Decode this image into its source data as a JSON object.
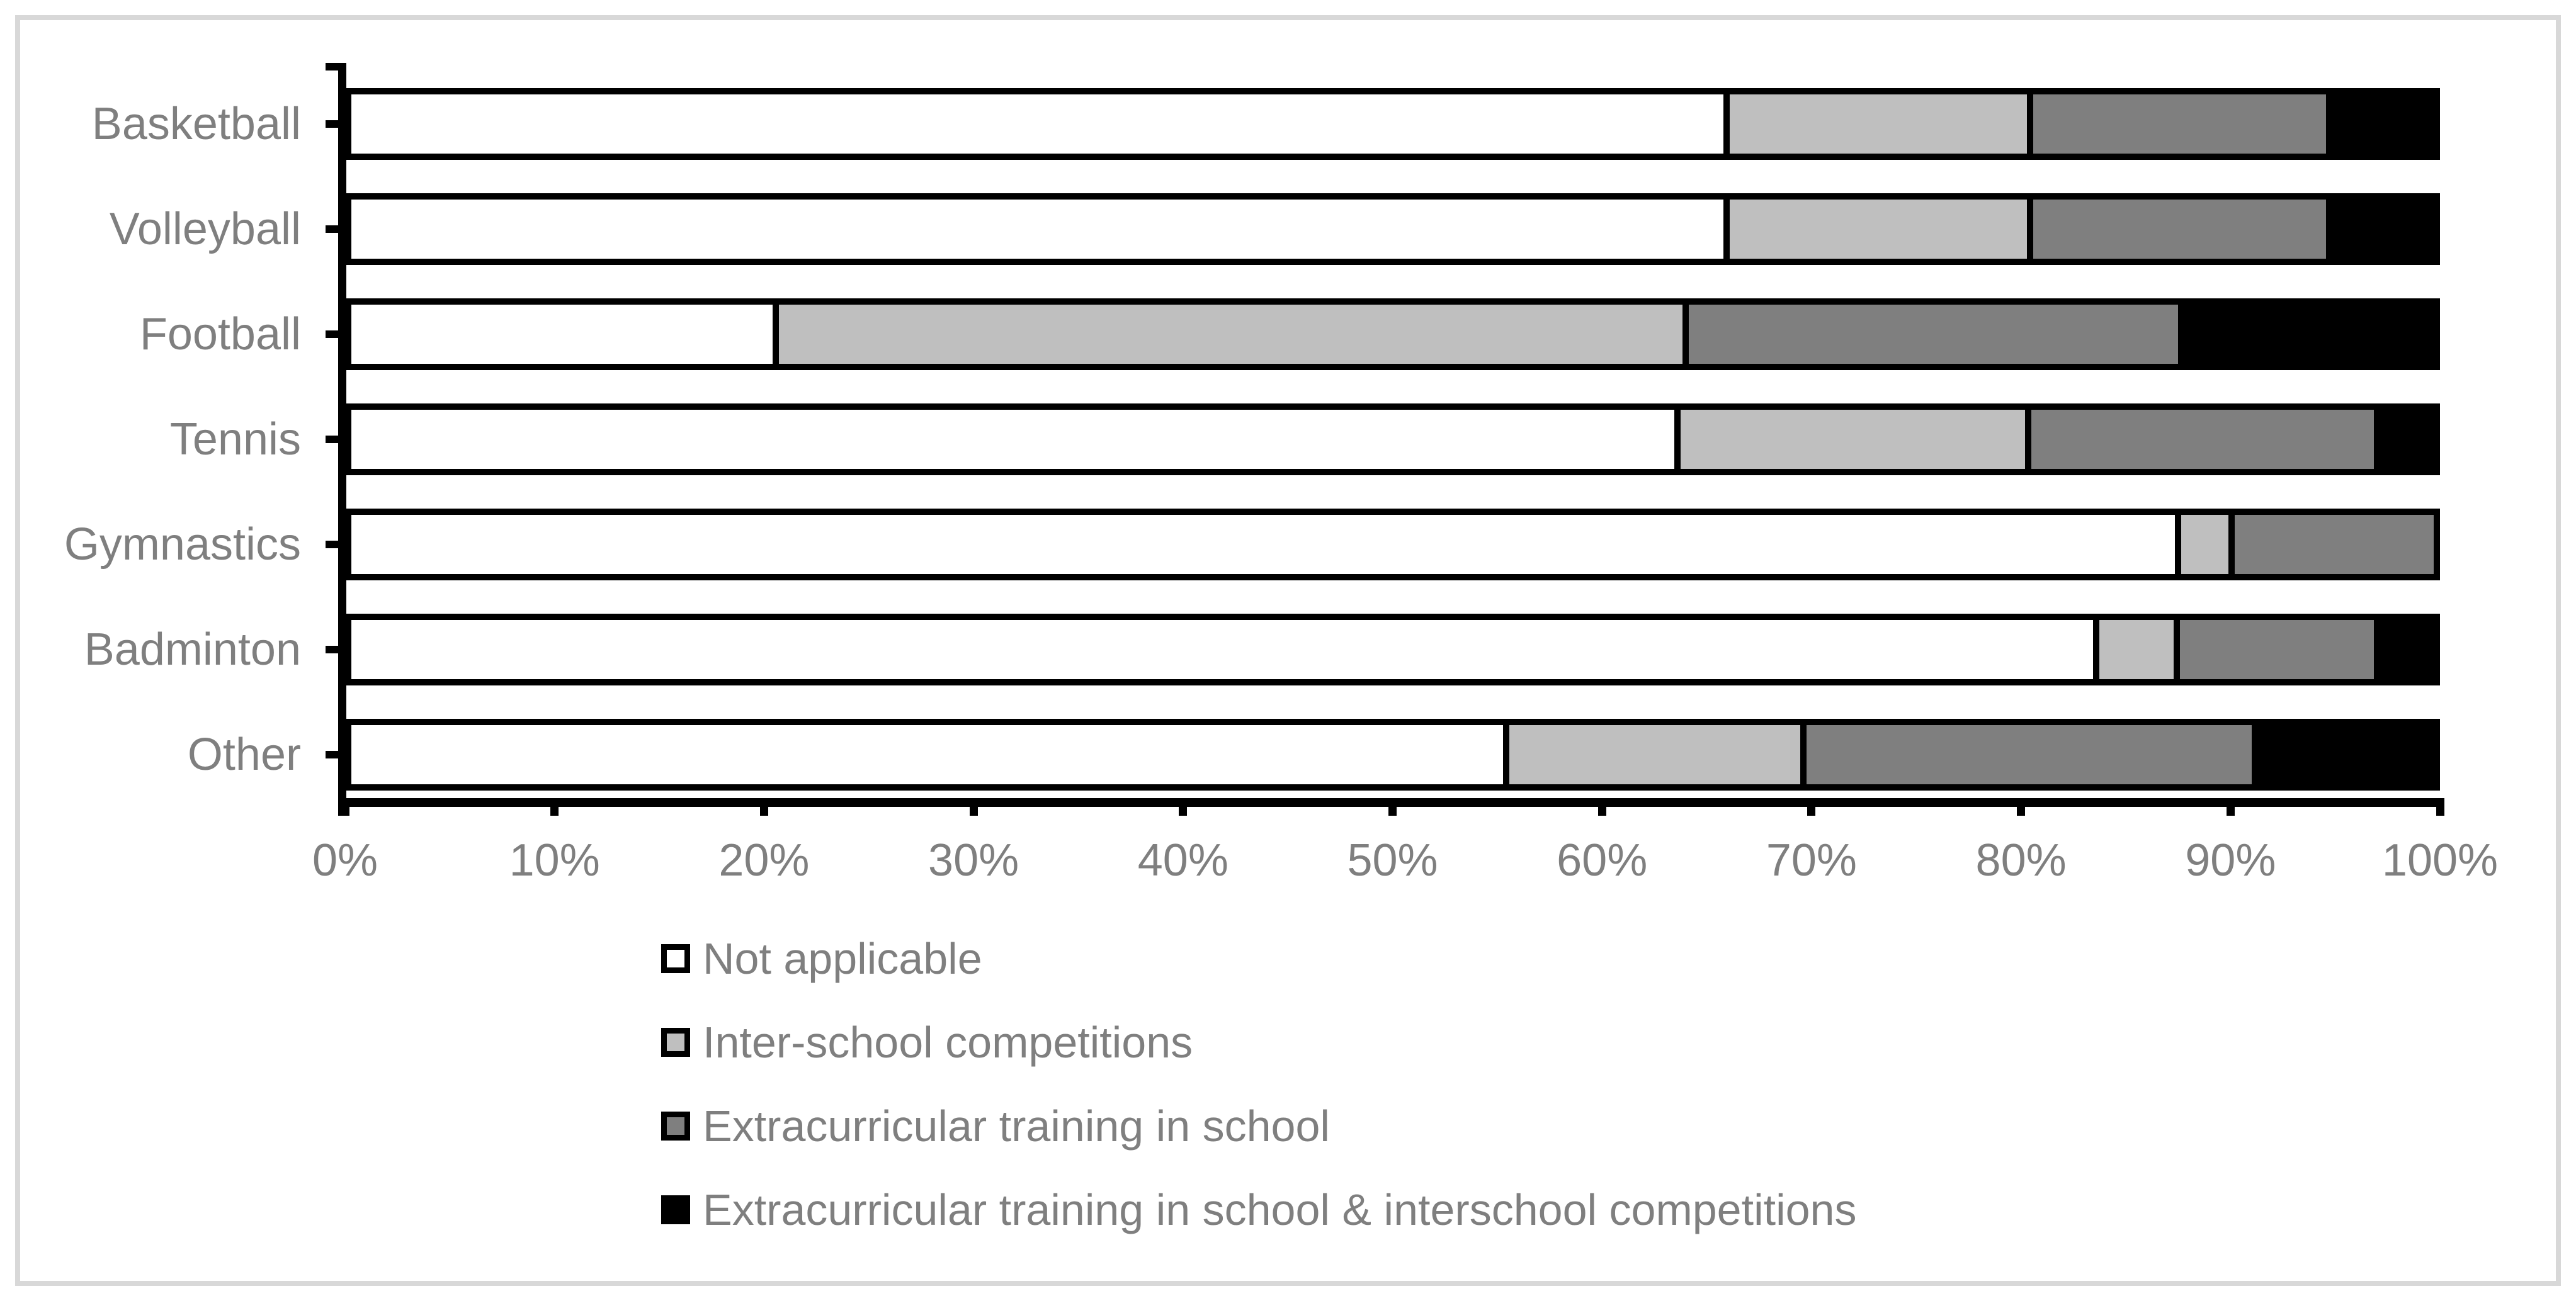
{
  "chart_data": {
    "type": "bar",
    "variant": "horizontal-stacked-100",
    "title": "",
    "categories": [
      "Basketball",
      "Volleyball",
      "Football",
      "Tennis",
      "Gymnastics",
      "Badminton",
      "Other"
    ],
    "series": [
      {
        "name": "Not applicable",
        "color": "#FFFFFF",
        "values": [
          66.5,
          66.5,
          20.4,
          64.1,
          88.1,
          84.4,
          55.8
        ]
      },
      {
        "name": "Inter-school competitions",
        "color": "#BFBFBF",
        "values": [
          14.4,
          14.4,
          43.8,
          16.7,
          2.3,
          3.6,
          14.1
        ]
      },
      {
        "name": "Extracurricular training in school",
        "color": "#7F7F7F",
        "values": [
          14.2,
          14.2,
          23.7,
          16.6,
          9.6,
          9.4,
          21.6
        ]
      },
      {
        "name": "Extracurricular training in school & interschool competitions",
        "color": "#000000",
        "values": [
          4.9,
          4.9,
          12.1,
          2.6,
          0,
          2.6,
          8.5
        ]
      }
    ],
    "x_ticks": [
      "0%",
      "10%",
      "20%",
      "30%",
      "40%",
      "50%",
      "60%",
      "70%",
      "80%",
      "90%",
      "100%"
    ],
    "xlim": [
      0,
      100
    ],
    "grid": false,
    "legend_position": "bottom",
    "bar_outline_color": "#000000",
    "text_color": "#7F7F7F",
    "frame_color": "#D8D8D8"
  }
}
